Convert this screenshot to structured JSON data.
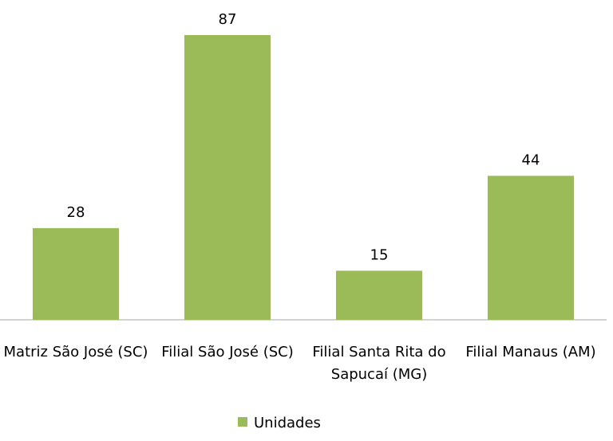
{
  "chart_data": {
    "type": "bar",
    "categories": [
      "Matriz São José (SC)",
      "Filial São José (SC)",
      "Filial Santa Rita do Sapucaí (MG)",
      "Filial Manaus (AM)"
    ],
    "series": [
      {
        "name": "Unidades",
        "color": "#9bbb59",
        "values": [
          28,
          87,
          15,
          44
        ]
      }
    ],
    "legend": "bottom"
  }
}
